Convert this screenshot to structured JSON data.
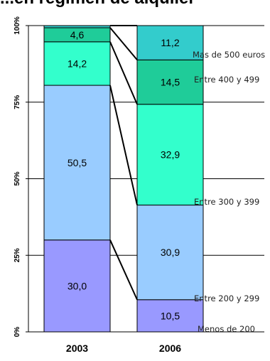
{
  "chart_data": {
    "type": "bar",
    "stacked": "100%",
    "title": "...en régimen de alquiler",
    "categories": [
      "2003",
      "2006"
    ],
    "yticks": [
      "0%",
      "25%",
      "50%",
      "75%",
      "100%"
    ],
    "ylim": [
      0,
      100
    ],
    "series": [
      {
        "name": "Menos de 200",
        "values": [
          30.0,
          10.5
        ],
        "labels": [
          "30,0",
          "10,5"
        ],
        "color": "#9999ff"
      },
      {
        "name": "Entre 200 y 299",
        "values": [
          50.5,
          30.9
        ],
        "labels": [
          "50,5",
          "30,9"
        ],
        "color": "#99ccff"
      },
      {
        "name": "Entre 300 y 399",
        "values": [
          14.2,
          32.9
        ],
        "labels": [
          "14,2",
          "32,9"
        ],
        "color": "#33ffcc"
      },
      {
        "name": "Entre 400 y 499",
        "values": [
          4.6,
          14.5
        ],
        "labels": [
          "4,6",
          "14,5"
        ],
        "color": "#1fcc99"
      },
      {
        "name": "Mas de 500 euros",
        "values": [
          0.7,
          11.2
        ],
        "labels": [
          "",
          "11,2"
        ],
        "color": "#33cccc"
      }
    ],
    "legend": "right, inline labels"
  }
}
